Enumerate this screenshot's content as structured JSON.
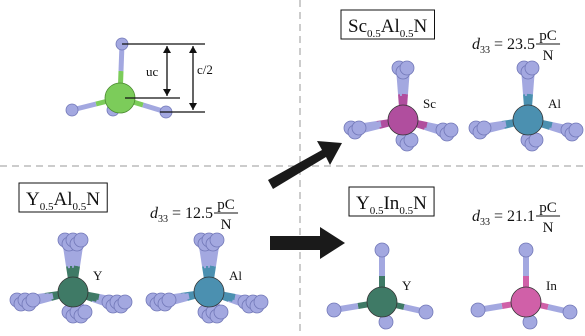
{
  "schematic": {
    "labels": [
      "uc",
      "c/2"
    ]
  },
  "panels": [
    {
      "formula": [
        "Sc",
        "0.5",
        "Al",
        "0.5",
        "N"
      ],
      "d33": {
        "symbol": "d",
        "subscript": "33",
        "equals": "=",
        "value": 23.5,
        "unit_num": "pC",
        "unit_den": "N"
      },
      "atoms": [
        "Sc",
        "Al"
      ]
    },
    {
      "formula": [
        "Y",
        "0.5",
        "Al",
        "0.5",
        "N"
      ],
      "d33": {
        "symbol": "d",
        "subscript": "33",
        "equals": "=",
        "value": 12.5,
        "unit_num": "pC",
        "unit_den": "N"
      },
      "atoms": [
        "Y",
        "Al"
      ]
    },
    {
      "formula": [
        "Y",
        "0.5",
        "In",
        "0.5",
        "N"
      ],
      "d33": {
        "symbol": "d",
        "subscript": "33",
        "equals": "=",
        "value": 21.1,
        "unit_num": "pC",
        "unit_den": "N"
      },
      "atoms": [
        "Y",
        "In"
      ]
    }
  ]
}
